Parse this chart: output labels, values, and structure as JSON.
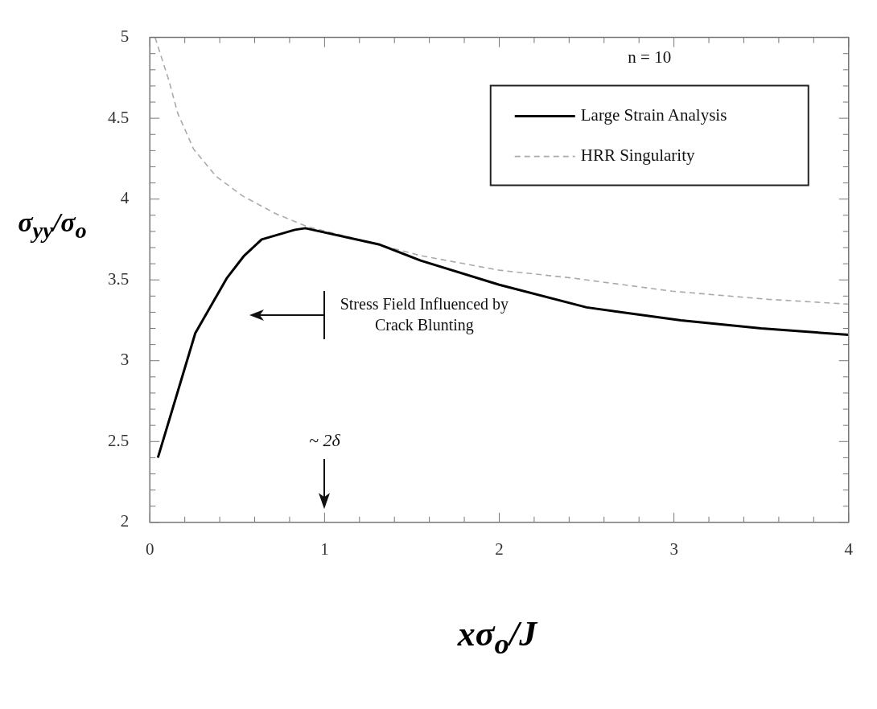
{
  "chart_data": {
    "type": "line",
    "xlabel": "xσ$_{o}$/J",
    "ylabel": "σ$_{yy}$/σ$_{o}$",
    "xlim": [
      0,
      4
    ],
    "ylim": [
      2,
      5
    ],
    "xticks": [
      0,
      {
        "value": 0.2,
        "label": null
      },
      {
        "value": 0.4,
        "label": null
      },
      {
        "value": 0.6,
        "label": null
      },
      {
        "value": 0.8,
        "label": null
      },
      1,
      {
        "value": 1.2,
        "label": null
      },
      {
        "value": 1.4,
        "label": null
      },
      {
        "value": 1.6,
        "label": null
      },
      {
        "value": 1.8,
        "label": null
      },
      2,
      {
        "value": 2.2,
        "label": null
      },
      {
        "value": 2.4,
        "label": null
      },
      {
        "value": 2.6,
        "label": null
      },
      {
        "value": 2.8,
        "label": null
      },
      3,
      {
        "value": 3.2,
        "label": null
      },
      {
        "value": 3.4,
        "label": null
      },
      {
        "value": 3.6,
        "label": null
      },
      {
        "value": 3.8,
        "label": null
      },
      4
    ],
    "yticks": [
      2,
      {
        "value": 2.1,
        "label": null
      },
      {
        "value": 2.2,
        "label": null
      },
      {
        "value": 2.3,
        "label": null
      },
      {
        "value": 2.4,
        "label": null
      },
      2.5,
      {
        "value": 2.6,
        "label": null
      },
      {
        "value": 2.7,
        "label": null
      },
      {
        "value": 2.8,
        "label": null
      },
      {
        "value": 2.9,
        "label": null
      },
      3,
      {
        "value": 3.1,
        "label": null
      },
      {
        "value": 3.2,
        "label": null
      },
      {
        "value": 3.3,
        "label": null
      },
      {
        "value": 3.4,
        "label": null
      },
      3.5,
      {
        "value": 3.6,
        "label": null
      },
      {
        "value": 3.7,
        "label": null
      },
      {
        "value": 3.8,
        "label": null
      },
      {
        "value": 3.9,
        "label": null
      },
      4,
      {
        "value": 4.1,
        "label": null
      },
      {
        "value": 4.2,
        "label": null
      },
      {
        "value": 4.3,
        "label": null
      },
      {
        "value": 4.4,
        "label": null
      },
      4.5,
      {
        "value": 4.6,
        "label": null
      },
      {
        "value": 4.7,
        "label": null
      },
      {
        "value": 4.8,
        "label": null
      },
      {
        "value": 4.9,
        "label": null
      },
      5
    ],
    "legend": "top right",
    "marker": "none",
    "series": [
      {
        "name": "Large Strain Analysis",
        "color": "#000000",
        "line_style": "solid",
        "x": [
          0.046,
          0.26,
          0.44,
          0.54,
          0.64,
          0.83,
          0.89,
          1.31,
          1.55,
          2.0,
          2.5,
          3.04,
          3.5,
          4.0
        ],
        "values": [
          2.4,
          3.17,
          3.51,
          3.65,
          3.75,
          3.81,
          3.82,
          3.72,
          3.62,
          3.47,
          3.33,
          3.25,
          3.2,
          3.16
        ]
      },
      {
        "name": "HRR Singularity",
        "color": "#aaaaaa",
        "line_style": "dashed",
        "x": [
          0.03,
          0.11,
          0.16,
          0.25,
          0.38,
          0.53,
          0.72,
          0.9,
          1.27,
          1.55,
          2.0,
          2.43,
          2.99,
          3.54,
          4.0
        ],
        "values": [
          5.0,
          4.73,
          4.53,
          4.31,
          4.14,
          4.02,
          3.91,
          3.83,
          3.73,
          3.65,
          3.56,
          3.51,
          3.43,
          3.38,
          3.35
        ]
      }
    ],
    "annotations": [
      "n = 10",
      "~ 2δ",
      "Stress Field Influenced by Crack Blunting"
    ]
  }
}
